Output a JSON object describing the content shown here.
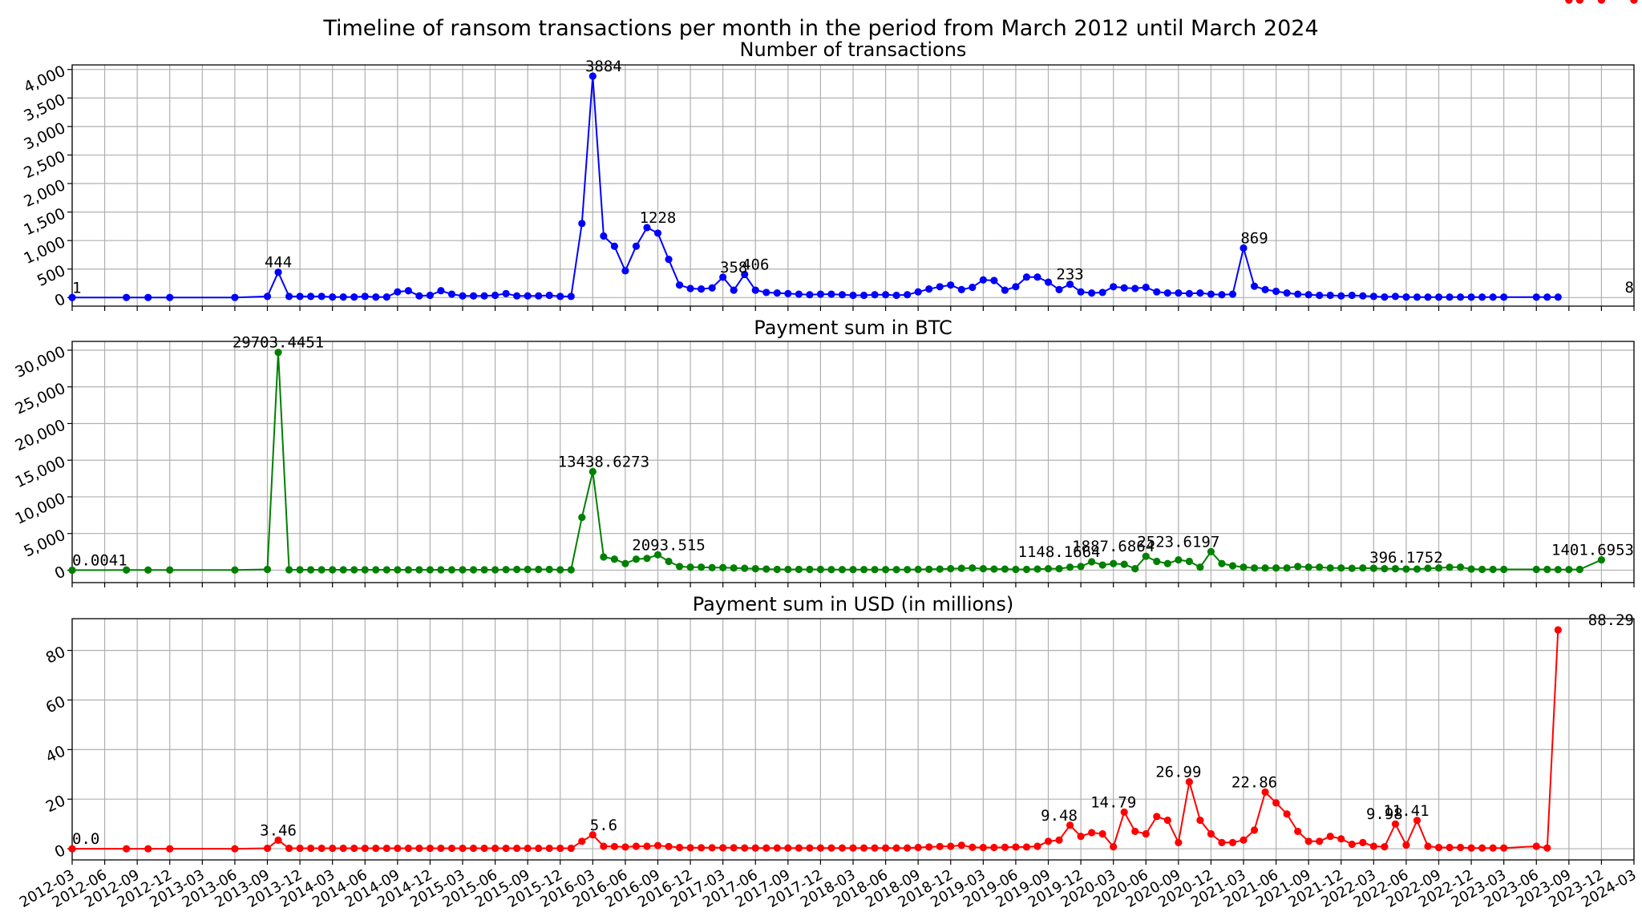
{
  "figure_title": "Timeline of ransom transactions per month in the period from March 2012 until March 2024",
  "chart_data": [
    {
      "type": "line",
      "title": "Number of transactions",
      "color": "#0000ff",
      "ylim": [
        -150,
        4080
      ],
      "yticks": [
        0,
        500,
        1000,
        1500,
        2000,
        2500,
        3000,
        3500,
        4000
      ],
      "yticklabels": [
        "0",
        "500",
        "1,000",
        "1,500",
        "2,000",
        "2,500",
        "3,000",
        "3,500",
        "4,000"
      ],
      "grid": true,
      "values": [
        1,
        2,
        2,
        2,
        2,
        20,
        444,
        20,
        20,
        20,
        20,
        10,
        10,
        10,
        20,
        10,
        10,
        100,
        120,
        30,
        40,
        120,
        60,
        30,
        30,
        30,
        40,
        70,
        30,
        30,
        30,
        40,
        20,
        20,
        1300,
        3884,
        1080,
        900,
        470,
        900,
        1228,
        1130,
        670,
        220,
        160,
        150,
        170,
        358,
        130,
        406,
        130,
        90,
        80,
        70,
        60,
        50,
        60,
        60,
        50,
        40,
        40,
        50,
        50,
        40,
        50,
        100,
        150,
        190,
        220,
        140,
        180,
        310,
        300,
        130,
        190,
        360,
        360,
        270,
        140,
        233,
        100,
        80,
        90,
        190,
        170,
        160,
        180,
        100,
        80,
        80,
        70,
        80,
        60,
        50,
        60,
        869,
        200,
        140,
        110,
        80,
        60,
        50,
        40,
        40,
        30,
        40,
        30,
        20,
        10,
        20,
        10,
        8,
        8,
        8,
        8,
        8,
        8,
        8,
        8,
        8,
        8,
        8,
        8
      ],
      "annotations": [
        {
          "label": "1",
          "x": "2012-03",
          "y": 1
        },
        {
          "label": "444",
          "x": "2013-10",
          "y": 444
        },
        {
          "label": "3884",
          "x": "2016-04",
          "y": 3884
        },
        {
          "label": "1228",
          "x": "2016-09",
          "y": 1228
        },
        {
          "label": "358",
          "x": "2017-04",
          "y": 358
        },
        {
          "label": "406",
          "x": "2017-06",
          "y": 406
        },
        {
          "label": "233",
          "x": "2019-11",
          "y": 233
        },
        {
          "label": "869",
          "x": "2021-04",
          "y": 869
        },
        {
          "label": "8",
          "x": "2024-03",
          "y": 8
        }
      ]
    },
    {
      "type": "line",
      "title": "Payment sum in BTC",
      "color": "#008000",
      "ylim": [
        -1700,
        31200
      ],
      "yticks": [
        0,
        5000,
        10000,
        15000,
        20000,
        25000,
        30000
      ],
      "yticklabels": [
        "0",
        "5,000",
        "10,000",
        "15,000",
        "20,000",
        "25,000",
        "30,000"
      ],
      "grid": true,
      "values": [
        0.0041,
        20,
        20,
        20,
        20,
        100,
        29703.4451,
        50,
        50,
        50,
        50,
        50,
        50,
        50,
        50,
        50,
        50,
        50,
        50,
        50,
        50,
        50,
        50,
        50,
        50,
        50,
        50,
        80,
        100,
        100,
        100,
        100,
        50,
        50,
        7200,
        13438.6273,
        1800,
        1500,
        900,
        1500,
        1600,
        2093.515,
        1200,
        500,
        400,
        400,
        350,
        350,
        300,
        250,
        200,
        150,
        100,
        100,
        100,
        100,
        100,
        80,
        80,
        80,
        80,
        80,
        80,
        80,
        80,
        100,
        120,
        150,
        200,
        250,
        300,
        200,
        150,
        150,
        100,
        100,
        150,
        200,
        200,
        400,
        500,
        1148.1664,
        700,
        900,
        800,
        200,
        1887.6864,
        1200,
        900,
        1400,
        1200,
        400,
        2523.6197,
        900,
        600,
        400,
        300,
        300,
        300,
        300,
        500,
        400,
        400,
        300,
        300,
        250,
        300,
        250,
        200,
        200,
        150,
        150,
        250,
        300,
        396.1752,
        400,
        150,
        100,
        100,
        100,
        100,
        100,
        80,
        80,
        100,
        1401.6953
      ],
      "annotations": [
        {
          "label": "0.0041",
          "x": "2012-03",
          "y": 0.0041
        },
        {
          "label": "29703.4451",
          "x": "2013-10",
          "y": 29703.4451
        },
        {
          "label": "13438.6273",
          "x": "2016-04",
          "y": 13438.6273
        },
        {
          "label": "2093.515",
          "x": "2016-10",
          "y": 2093.515
        },
        {
          "label": "1148.1664",
          "x": "2019-10",
          "y": 1148.1664
        },
        {
          "label": "1887.6864",
          "x": "2020-03",
          "y": 1887.6864
        },
        {
          "label": "2523.6197",
          "x": "2020-09",
          "y": 2523.6197
        },
        {
          "label": "396.1752",
          "x": "2022-06",
          "y": 396.1752
        },
        {
          "label": "1401.6953",
          "x": "2024-03",
          "y": 1401.6953
        }
      ]
    },
    {
      "type": "line",
      "title": "Payment sum in USD (in millions)",
      "color": "#ff0000",
      "ylim": [
        -4.5,
        92.8
      ],
      "yticks": [
        0,
        20,
        40,
        60,
        80
      ],
      "yticklabels": [
        "0",
        "20",
        "40",
        "60",
        "80"
      ],
      "grid": true,
      "values": [
        0.0,
        0,
        0,
        0,
        0,
        0.2,
        3.46,
        0.2,
        0.2,
        0.2,
        0.2,
        0.2,
        0.2,
        0.2,
        0.2,
        0.2,
        0.2,
        0.2,
        0.2,
        0.2,
        0.2,
        0.2,
        0.2,
        0.2,
        0.2,
        0.2,
        0.2,
        0.2,
        0.2,
        0.2,
        0.2,
        0.2,
        0.2,
        0.2,
        3.0,
        5.6,
        1.0,
        0.9,
        0.7,
        1.0,
        1.0,
        1.3,
        0.9,
        0.5,
        0.4,
        0.4,
        0.4,
        0.4,
        0.4,
        0.3,
        0.3,
        0.3,
        0.3,
        0.3,
        0.3,
        0.3,
        0.3,
        0.3,
        0.3,
        0.3,
        0.3,
        0.3,
        0.3,
        0.3,
        0.3,
        0.5,
        0.7,
        0.9,
        1.0,
        1.4,
        0.6,
        0.5,
        0.5,
        0.6,
        0.7,
        0.7,
        1.0,
        3.0,
        3.5,
        9.48,
        5.0,
        6.5,
        6.0,
        0.8,
        14.79,
        7.0,
        6.0,
        13.0,
        11.5,
        2.5,
        26.99,
        11.5,
        6.0,
        2.5,
        2.5,
        3.5,
        7.5,
        22.86,
        18.5,
        14.0,
        7.0,
        3.0,
        3.0,
        5.0,
        4.0,
        1.8,
        2.5,
        1.0,
        0.8,
        9.98,
        1.5,
        11.41,
        1.0,
        0.5,
        0.5,
        0.5,
        0.3,
        0.3,
        0.3,
        0.3,
        1.0,
        0.3,
        88.29
      ],
      "annotations": [
        {
          "label": "0.0",
          "x": "2012-03",
          "y": 0.0
        },
        {
          "label": "3.46",
          "x": "2013-10",
          "y": 3.46
        },
        {
          "label": "5.6",
          "x": "2016-04",
          "y": 5.6
        },
        {
          "label": "9.48",
          "x": "2019-10",
          "y": 9.48
        },
        {
          "label": "14.79",
          "x": "2020-03",
          "y": 14.79
        },
        {
          "label": "26.99",
          "x": "2020-09",
          "y": 26.99
        },
        {
          "label": "22.86",
          "x": "2021-04",
          "y": 22.86
        },
        {
          "label": "9.98",
          "x": "2022-04",
          "y": 9.98
        },
        {
          "label": "11.41",
          "x": "2022-06",
          "y": 11.41
        },
        {
          "label": "88.29",
          "x": "2024-03",
          "y": 88.29
        }
      ]
    }
  ],
  "x_dates": [
    "2012-03",
    "2012-08",
    "2012-10",
    "2012-12",
    "2013-06",
    "2013-09",
    "2013-10",
    "2013-11",
    "2013-12",
    "2014-01",
    "2014-02",
    "2014-03",
    "2014-04",
    "2014-05",
    "2014-06",
    "2014-07",
    "2014-08",
    "2014-09",
    "2014-10",
    "2014-11",
    "2014-12",
    "2015-01",
    "2015-02",
    "2015-03",
    "2015-04",
    "2015-05",
    "2015-06",
    "2015-07",
    "2015-08",
    "2015-09",
    "2015-10",
    "2015-11",
    "2015-12",
    "2016-01",
    "2016-02",
    "2016-03",
    "2016-04",
    "2016-05",
    "2016-06",
    "2016-07",
    "2016-08",
    "2016-09",
    "2016-10",
    "2016-11",
    "2016-12",
    "2017-01",
    "2017-02",
    "2017-03",
    "2017-04",
    "2017-05",
    "2017-06",
    "2017-07",
    "2017-08",
    "2017-09",
    "2017-10",
    "2017-11",
    "2017-12",
    "2018-01",
    "2018-02",
    "2018-03",
    "2018-04",
    "2018-05",
    "2018-06",
    "2018-07",
    "2018-08",
    "2018-09",
    "2018-10",
    "2018-11",
    "2018-12",
    "2019-01",
    "2019-02",
    "2019-03",
    "2019-04",
    "2019-05",
    "2019-06",
    "2019-07",
    "2019-08",
    "2019-09",
    "2019-10",
    "2019-11",
    "2019-12",
    "2020-01",
    "2020-02",
    "2020-03",
    "2020-04",
    "2020-05",
    "2020-06",
    "2020-07",
    "2020-08",
    "2020-09",
    "2020-10",
    "2020-11",
    "2020-12",
    "2021-01",
    "2021-02",
    "2021-03",
    "2021-04",
    "2021-05",
    "2021-06",
    "2021-07",
    "2021-08",
    "2021-09",
    "2021-10",
    "2021-11",
    "2021-12",
    "2022-01",
    "2022-02",
    "2022-03",
    "2022-04",
    "2022-05",
    "2022-06",
    "2022-07",
    "2022-08",
    "2022-09",
    "2022-10",
    "2022-11",
    "2022-12",
    "2023-01",
    "2023-02",
    "2023-03",
    "2023-06",
    "2023-07",
    "2023-08",
    "2023-09",
    "2023-10",
    "2023-12",
    "2024-03"
  ],
  "x_ticks": [
    "2012-03",
    "2012-06",
    "2012-09",
    "2012-12",
    "2013-03",
    "2013-06",
    "2013-09",
    "2013-12",
    "2014-03",
    "2014-06",
    "2014-09",
    "2014-12",
    "2015-03",
    "2015-06",
    "2015-09",
    "2015-12",
    "2016-03",
    "2016-06",
    "2016-09",
    "2016-12",
    "2017-03",
    "2017-06",
    "2017-09",
    "2017-12",
    "2018-03",
    "2018-06",
    "2018-09",
    "2018-12",
    "2019-03",
    "2019-06",
    "2019-09",
    "2019-12",
    "2020-03",
    "2020-06",
    "2020-09",
    "2020-12",
    "2021-03",
    "2021-06",
    "2021-09",
    "2021-12",
    "2022-03",
    "2022-06",
    "2022-09",
    "2022-12",
    "2023-03",
    "2023-06",
    "2023-09",
    "2023-12",
    "2024-03"
  ],
  "x_minor_months": 1
}
